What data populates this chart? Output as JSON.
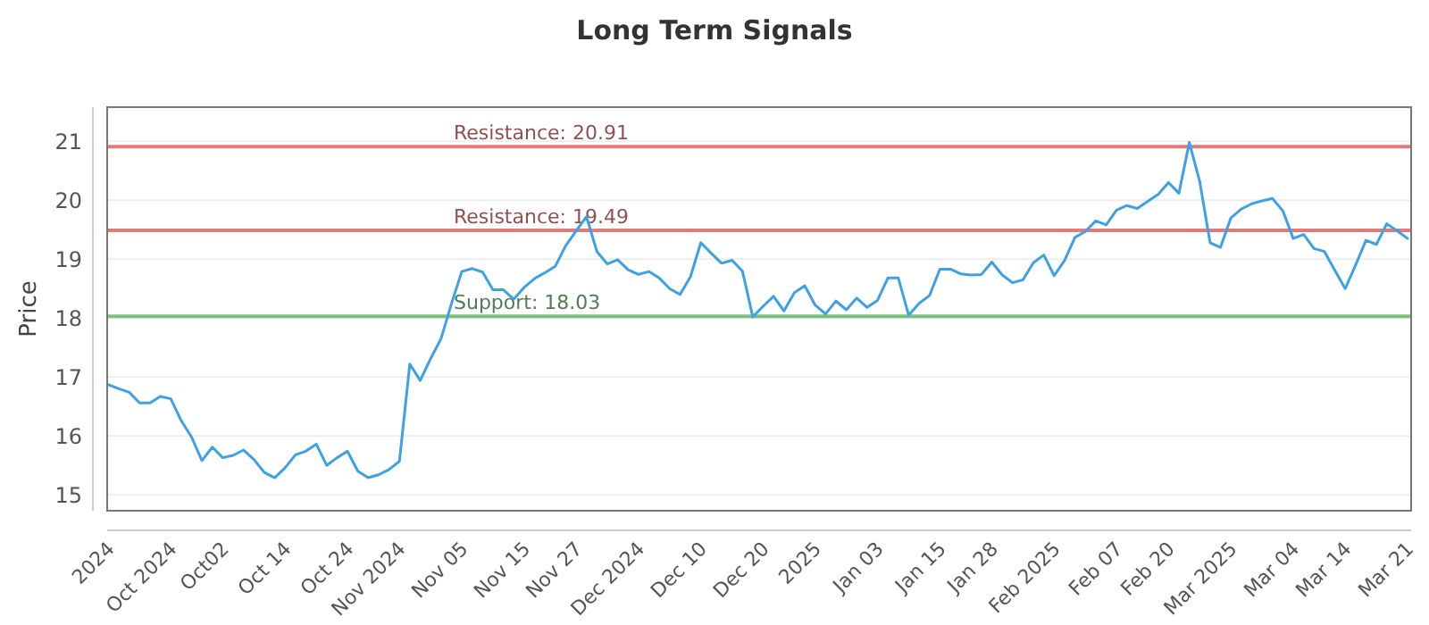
{
  "chart_data": {
    "type": "line",
    "title": "Long Term Signals",
    "ylabel": "Price",
    "categories": [
      "2024",
      null,
      null,
      null,
      null,
      null,
      "Oct 2024",
      null,
      null,
      null,
      null,
      "Oct02",
      null,
      null,
      null,
      null,
      null,
      "Oct 14",
      null,
      null,
      null,
      null,
      null,
      "Oct 24",
      null,
      null,
      null,
      null,
      "Nov 2024",
      null,
      null,
      null,
      null,
      null,
      "Nov 05",
      null,
      null,
      null,
      null,
      null,
      "Nov 15",
      null,
      null,
      null,
      null,
      "Nov 27",
      null,
      null,
      null,
      null,
      null,
      "Dec 2024",
      null,
      null,
      null,
      null,
      null,
      "Dec 10",
      null,
      null,
      null,
      null,
      null,
      "Dec 20",
      null,
      null,
      null,
      null,
      "2025",
      null,
      null,
      null,
      null,
      null,
      "Jan 03",
      null,
      null,
      null,
      null,
      null,
      "Jan 15",
      null,
      null,
      null,
      null,
      "Jan 28",
      null,
      null,
      null,
      null,
      null,
      "Feb 2025",
      null,
      null,
      null,
      null,
      null,
      "Feb 07",
      null,
      null,
      null,
      null,
      "Feb 20",
      null,
      null,
      null,
      null,
      null,
      "Mar 2025",
      null,
      null,
      null,
      null,
      null,
      "Mar 04",
      null,
      null,
      null,
      null,
      "Mar 14",
      null,
      null,
      null,
      null,
      null,
      "Mar 21"
    ],
    "series": [
      {
        "color": "#3ea1e8",
        "values": [
          16.87,
          16.8,
          16.74,
          16.56,
          16.56,
          16.67,
          16.63,
          16.26,
          15.98,
          15.58,
          15.81,
          15.63,
          15.67,
          15.76,
          15.6,
          15.38,
          15.29,
          15.46,
          15.68,
          15.74,
          15.86,
          15.5,
          15.63,
          15.74,
          15.4,
          15.29,
          15.34,
          15.43,
          15.57,
          17.22,
          16.94,
          17.31,
          17.65,
          18.24,
          18.79,
          18.84,
          18.78,
          18.48,
          18.48,
          18.32,
          18.52,
          18.67,
          18.77,
          18.88,
          19.23,
          19.48,
          19.72,
          19.13,
          18.92,
          18.99,
          18.82,
          18.74,
          18.79,
          18.68,
          18.5,
          18.4,
          18.7,
          19.28,
          19.1,
          18.93,
          18.98,
          18.8,
          18.02,
          18.2,
          18.37,
          18.12,
          18.43,
          18.55,
          18.22,
          18.07,
          18.29,
          18.14,
          18.34,
          18.18,
          18.3,
          18.68,
          18.68,
          18.05,
          18.25,
          18.38,
          18.83,
          18.83,
          18.75,
          18.73,
          18.74,
          18.95,
          18.73,
          18.6,
          18.65,
          18.94,
          19.07,
          18.72,
          18.98,
          19.37,
          19.47,
          19.65,
          19.58,
          19.83,
          19.91,
          19.86,
          19.98,
          20.1,
          20.3,
          20.12,
          20.98,
          20.32,
          19.28,
          19.2,
          19.7,
          19.85,
          19.94,
          19.99,
          20.03,
          19.82,
          19.35,
          19.42,
          19.18,
          19.13,
          18.81,
          18.5,
          18.9,
          19.32,
          19.25,
          19.6,
          19.48,
          19.35
        ]
      }
    ],
    "ylim": [
      14.73,
      21.58
    ],
    "yticks": [
      15,
      16,
      17,
      18,
      19,
      20,
      21
    ],
    "grid": "y",
    "marker": "none",
    "line_style": "solid",
    "ref_lines": [
      {
        "axis": "y",
        "value": 20.91,
        "label": "Resistance: 20.91",
        "color": "#e07b7b"
      },
      {
        "axis": "y",
        "value": 19.49,
        "label": "Resistance: 19.49",
        "color": "#e07b7b"
      },
      {
        "axis": "y",
        "value": 18.03,
        "label": "Support: 18.03",
        "color": "#7cc07c"
      }
    ]
  }
}
